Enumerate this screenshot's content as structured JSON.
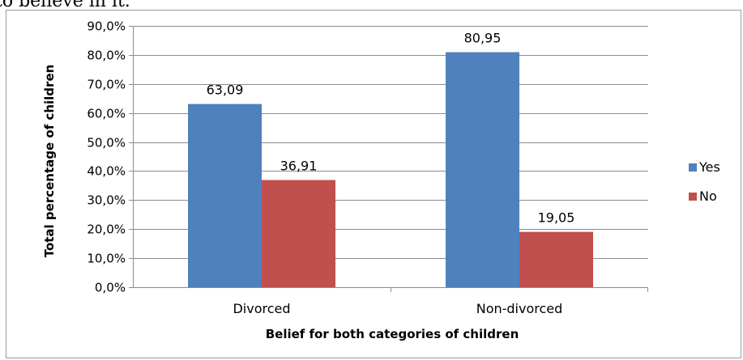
{
  "cropped_top_text": "to believe in it.",
  "chart_data": {
    "type": "bar",
    "categories": [
      "Divorced",
      "Non-divorced"
    ],
    "series": [
      {
        "name": "Yes",
        "color": "#4F81BD",
        "values": [
          63.09,
          80.95
        ],
        "labels": [
          "63,09",
          "80,95"
        ]
      },
      {
        "name": "No",
        "color": "#C0504D",
        "values": [
          36.91,
          19.05
        ],
        "labels": [
          "36,91",
          "19,05"
        ]
      }
    ],
    "xlabel": "Belief for both categories of children",
    "ylabel": "Total percentage of children",
    "ylim": [
      0,
      90
    ],
    "yticks": [
      "0,0%",
      "10,0%",
      "20,0%",
      "30,0%",
      "40,0%",
      "50,0%",
      "60,0%",
      "70,0%",
      "80,0%",
      "90,0%"
    ],
    "grid": true,
    "legend_position": "right"
  }
}
